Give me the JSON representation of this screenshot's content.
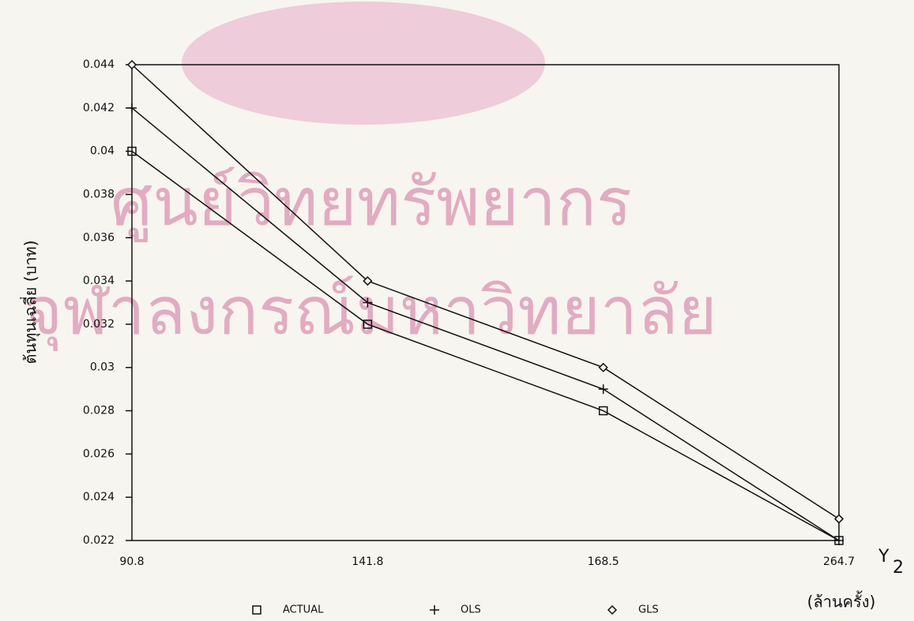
{
  "chart_data": {
    "type": "line",
    "watermark": [
      "ศูนย์วิทยทรัพยากร",
      "จุฬาลงกรณ์มหาวิทยาลัย"
    ],
    "y_label": "ต้นทุนเฉลี่ย (บาท)",
    "x_label": "Y",
    "x_label_subscript": "2",
    "x_unit": "(ล้านครั้ง)",
    "categories": [
      "90.8",
      "141.8",
      "168.5",
      "264.7"
    ],
    "series": [
      {
        "name": "ACTUAL",
        "color": "#111111",
        "marker": "square",
        "values": [
          0.04,
          0.032,
          0.028,
          0.022
        ]
      },
      {
        "name": "OLS",
        "color": "#111111",
        "marker": "plus",
        "values": [
          0.042,
          0.033,
          0.029,
          0.022
        ]
      },
      {
        "name": "GLS",
        "color": "#111111",
        "marker": "diamond",
        "values": [
          0.044,
          0.034,
          0.03,
          0.023
        ]
      }
    ],
    "ylim": [
      0.022,
      0.044
    ],
    "yticks": [
      0.022,
      0.024,
      0.026,
      0.028,
      0.03,
      0.032,
      0.034,
      0.036,
      0.038,
      0.04,
      0.042,
      0.044
    ],
    "grid": false
  }
}
